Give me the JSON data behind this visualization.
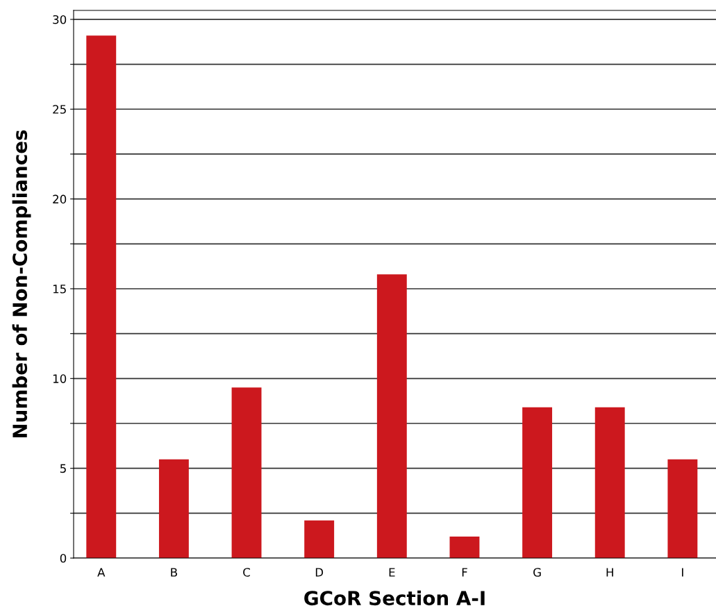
{
  "chart_data": {
    "type": "bar",
    "xlabel": "GCoR Section A-I",
    "ylabel": "Number of Non-Compliances",
    "categories": [
      "A",
      "B",
      "C",
      "D",
      "E",
      "F",
      "G",
      "H",
      "I"
    ],
    "values": [
      29.1,
      5.5,
      9.5,
      2.1,
      15.8,
      1.2,
      8.4,
      8.4,
      5.5
    ],
    "color": "#cc181e",
    "ylim": [
      0,
      30.5
    ],
    "yticks": [
      0,
      {
        "value": 2.5,
        "label": null
      },
      5,
      {
        "value": 7.5,
        "label": null
      },
      10,
      {
        "value": 12.5,
        "label": null
      },
      15,
      {
        "value": 17.5,
        "label": null
      },
      20,
      {
        "value": 22.5,
        "label": null
      },
      25,
      {
        "value": 27.5,
        "label": null
      },
      30
    ],
    "grid": "y",
    "legend": false
  }
}
